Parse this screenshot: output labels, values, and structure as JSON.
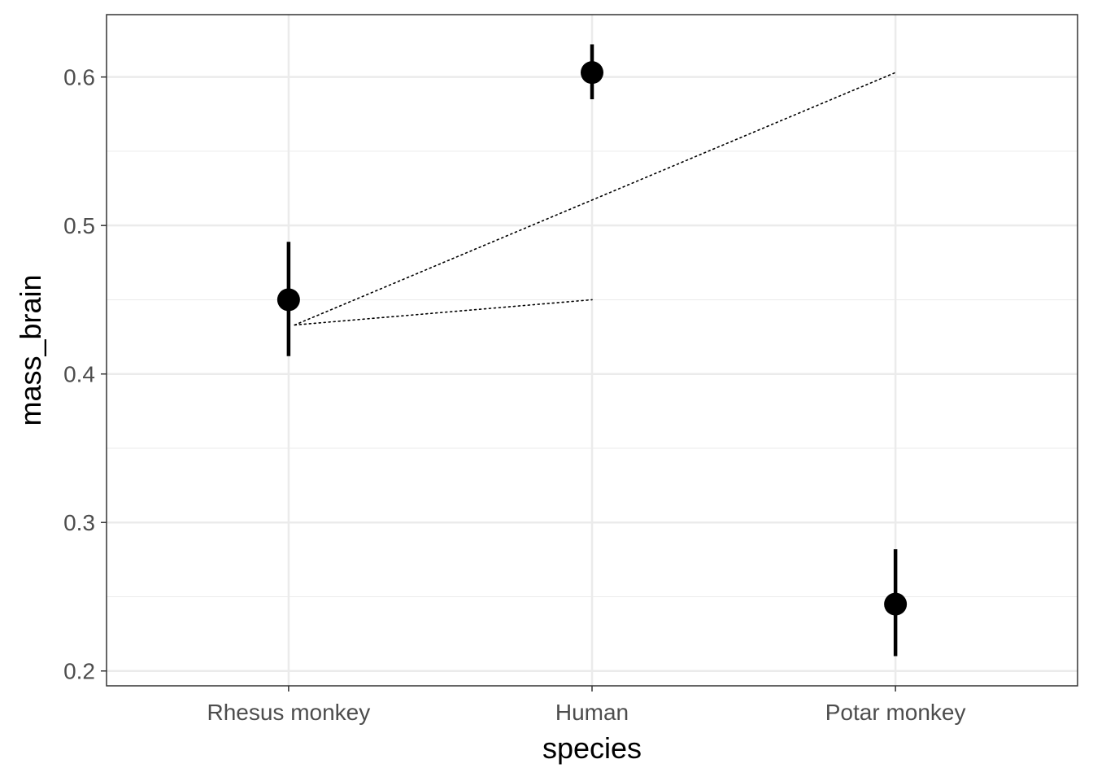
{
  "chart_data": {
    "type": "scatter",
    "title": "",
    "xlabel": "species",
    "ylabel": "mass_brain",
    "categories": [
      "Rhesus monkey",
      "Human",
      "Potar monkey"
    ],
    "ylim": [
      0.19,
      0.642
    ],
    "yticks": [
      0.2,
      0.3,
      0.4,
      0.5,
      0.6
    ],
    "ytick_labels": [
      "0.2",
      "0.3",
      "0.4",
      "0.5",
      "0.6"
    ],
    "grid": true,
    "theme": "bw",
    "series": [
      {
        "points": [
          {
            "category": "Rhesus monkey",
            "y": 0.45,
            "ymin": 0.412,
            "ymax": 0.489
          },
          {
            "category": "Human",
            "y": 0.603,
            "ymin": 0.585,
            "ymax": 0.622
          },
          {
            "category": "Potar monkey",
            "y": 0.245,
            "ymin": 0.21,
            "ymax": 0.282
          }
        ],
        "color": "#000000"
      }
    ],
    "annotations": [
      {
        "type": "dotted-line",
        "from": {
          "category": "Rhesus monkey",
          "y": 0.433,
          "dx": 0.02
        },
        "to": {
          "category": "Potar monkey",
          "y": 0.603
        }
      },
      {
        "type": "dotted-line",
        "from": {
          "category": "Rhesus monkey",
          "y": 0.433,
          "dx": 0.02
        },
        "to": {
          "category": "Human",
          "y": 0.45
        }
      }
    ]
  }
}
